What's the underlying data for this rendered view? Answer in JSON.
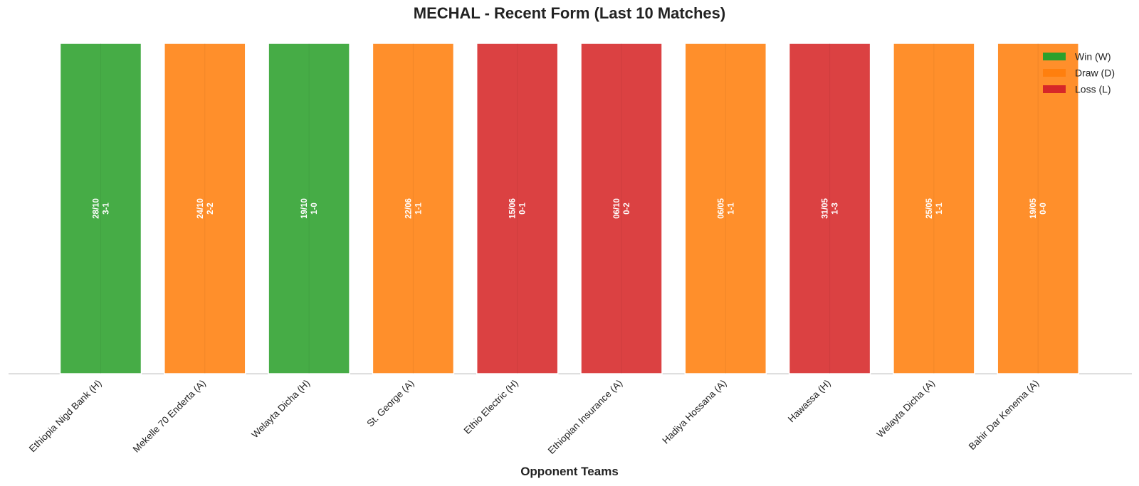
{
  "chart_data": {
    "type": "bar",
    "title": "MECHAL - Recent Form (Last 10 Matches)",
    "xlabel": "Opponent Teams",
    "ylabel": "",
    "grid": false,
    "legend_placement": "top-right",
    "legend": [
      {
        "label": "Win (W)",
        "key": "W",
        "color": "#2ca02c"
      },
      {
        "label": "Draw (D)",
        "key": "D",
        "color": "#ff7f0e"
      },
      {
        "label": "Loss (L)",
        "key": "L",
        "color": "#d62728"
      }
    ],
    "categories": [
      "Ethiopia Nigd Bank (H)",
      "Mekelle 70 Enderta (A)",
      "Welayta Dicha (H)",
      "St. George (A)",
      "Ethio Electric (H)",
      "Ethiopian Insurance (A)",
      "Hadiya Hossana (A)",
      "Hawassa (H)",
      "Welayta Dicha (A)",
      "Bahir Dar Kenema (A)"
    ],
    "values": [
      1,
      1,
      1,
      1,
      1,
      1,
      1,
      1,
      1,
      1
    ],
    "results": [
      "W",
      "D",
      "W",
      "D",
      "L",
      "L",
      "D",
      "L",
      "D",
      "D"
    ],
    "dates": [
      "28/10",
      "24/10",
      "19/10",
      "22/06",
      "15/06",
      "06/10",
      "06/05",
      "31/05",
      "25/05",
      "19/05"
    ],
    "scores": [
      "3-1",
      "2-2",
      "1-0",
      "1-1",
      "0-1",
      "0-2",
      "1-1",
      "1-3",
      "1-1",
      "0-0"
    ]
  }
}
